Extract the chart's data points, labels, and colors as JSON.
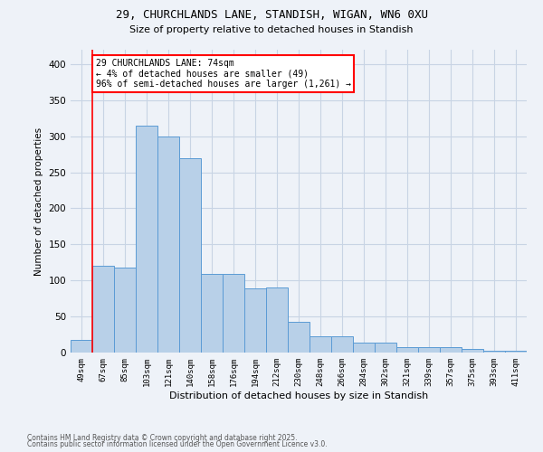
{
  "title": "29, CHURCHLANDS LANE, STANDISH, WIGAN, WN6 0XU",
  "subtitle": "Size of property relative to detached houses in Standish",
  "xlabel": "Distribution of detached houses by size in Standish",
  "ylabel": "Number of detached properties",
  "footnote1": "Contains HM Land Registry data © Crown copyright and database right 2025.",
  "footnote2": "Contains public sector information licensed under the Open Government Licence v3.0.",
  "bin_labels": [
    "49sqm",
    "67sqm",
    "85sqm",
    "103sqm",
    "121sqm",
    "140sqm",
    "158sqm",
    "176sqm",
    "194sqm",
    "212sqm",
    "230sqm",
    "248sqm",
    "266sqm",
    "284sqm",
    "302sqm",
    "321sqm",
    "339sqm",
    "357sqm",
    "375sqm",
    "393sqm",
    "411sqm"
  ],
  "bar_heights": [
    18,
    120,
    118,
    315,
    300,
    270,
    109,
    109,
    89,
    90,
    43,
    22,
    22,
    14,
    14,
    8,
    8,
    7,
    5,
    2,
    2
  ],
  "bar_color": "#b8d0e8",
  "bar_edge_color": "#5b9bd5",
  "grid_color": "#c8d4e4",
  "background_color": "#eef2f8",
  "red_line_x": 0.5,
  "annotation_text": "29 CHURCHLANDS LANE: 74sqm\n← 4% of detached houses are smaller (49)\n96% of semi-detached houses are larger (1,261) →",
  "annotation_box_color": "white",
  "annotation_border_color": "red",
  "ylim": [
    0,
    420
  ],
  "yticks": [
    0,
    50,
    100,
    150,
    200,
    250,
    300,
    350,
    400
  ],
  "figwidth": 6.0,
  "figheight": 5.0,
  "dpi": 100
}
